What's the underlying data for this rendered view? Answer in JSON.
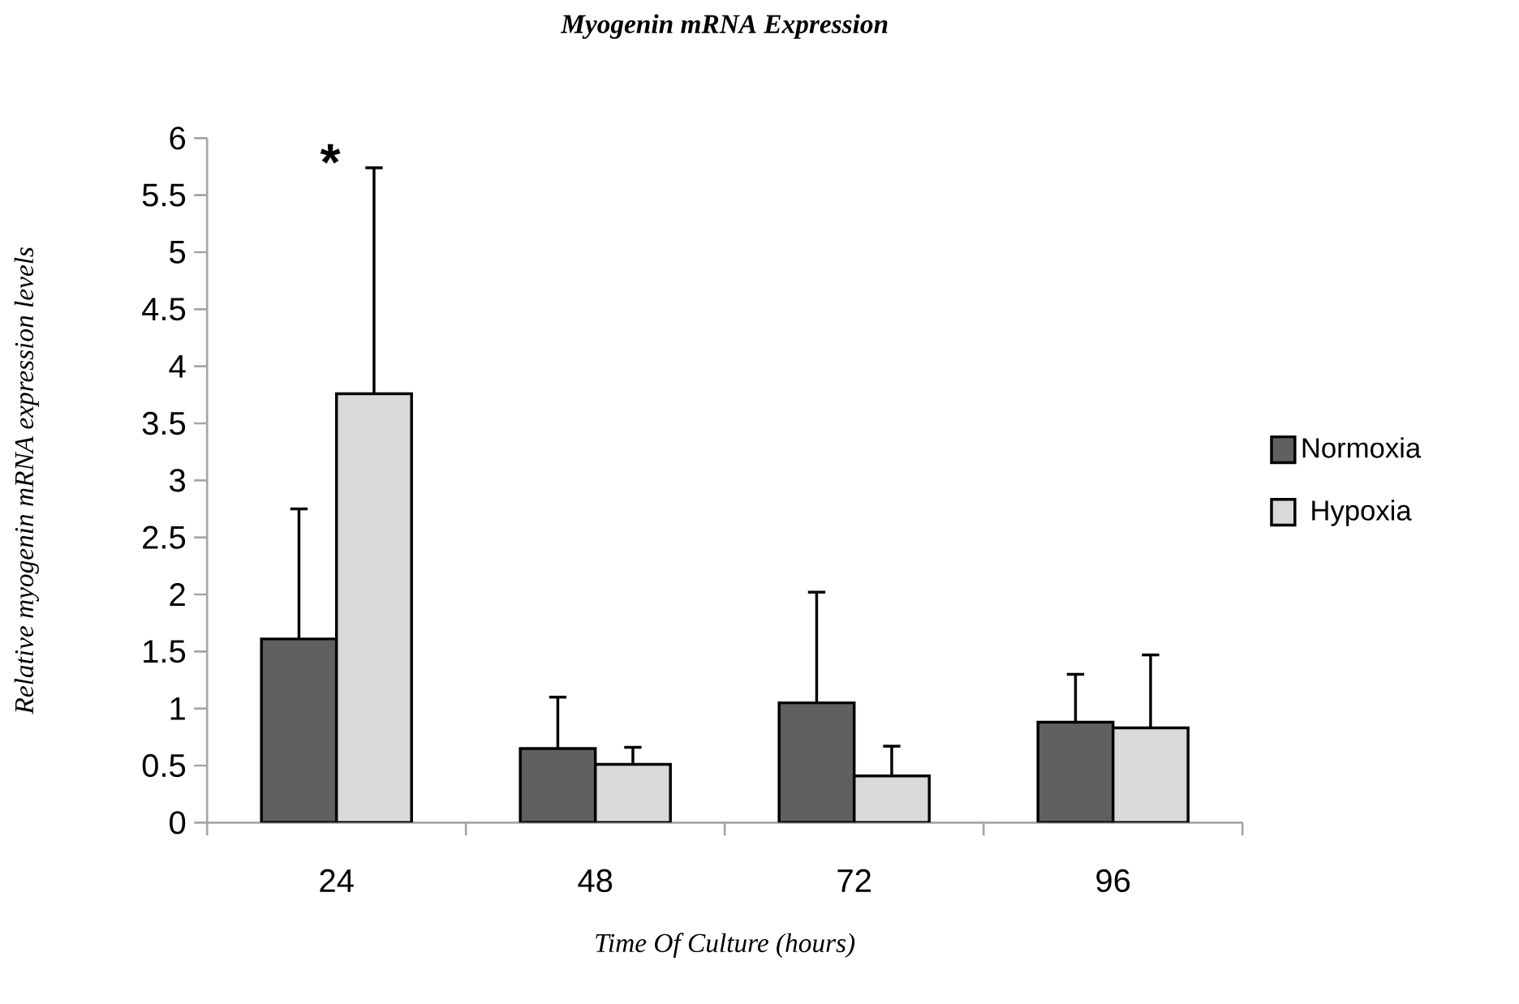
{
  "chart_data": {
    "type": "bar",
    "title": "Myogenin mRNA Expression",
    "xlabel": "Time Of Culture (hours)",
    "ylabel": "Relative myogenin mRNA expression levels",
    "categories": [
      "24",
      "48",
      "72",
      "96"
    ],
    "series": [
      {
        "name": "Normoxia",
        "color": "#606060",
        "values": [
          1.61,
          0.65,
          1.05,
          0.88
        ],
        "errors": [
          [
            1.61,
            2.75
          ],
          [
            0.65,
            1.1
          ],
          [
            1.05,
            2.02
          ],
          [
            0.88,
            1.3
          ]
        ]
      },
      {
        "name": "Hypoxia",
        "color": "#d9d9d9",
        "values": [
          3.76,
          0.51,
          0.41,
          0.83
        ],
        "errors": [
          [
            3.76,
            5.74
          ],
          [
            0.51,
            0.66
          ],
          [
            0.41,
            0.67
          ],
          [
            0.83,
            1.47
          ]
        ]
      }
    ],
    "ylim": [
      0,
      6
    ],
    "yticks": [
      0,
      {
        "value": 0.5,
        "label": "0.5"
      },
      1,
      {
        "value": 1.5,
        "label": "1.5"
      },
      2,
      {
        "value": 2.5,
        "label": "2.5"
      },
      3,
      {
        "value": 3.5,
        "label": "3.5"
      },
      4,
      {
        "value": 4.5,
        "label": "4.5"
      },
      5,
      {
        "value": 5.5,
        "label": "5.5"
      },
      6
    ],
    "legend": "right",
    "annotations": [
      "*"
    ]
  }
}
